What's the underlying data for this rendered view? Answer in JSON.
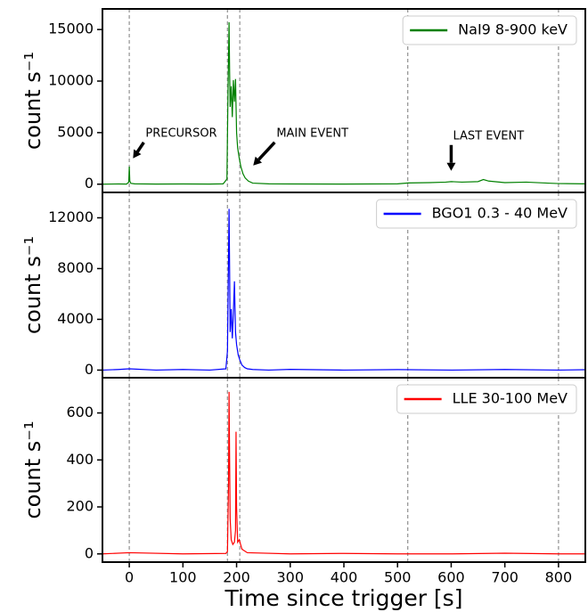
{
  "chart_data": [
    {
      "type": "line",
      "ylabel": "count s⁻¹",
      "xlim": [
        -50,
        850
      ],
      "ylim": [
        -800,
        17000
      ],
      "yticks": [
        0,
        5000,
        10000,
        15000
      ],
      "vlines": [
        0,
        183,
        206,
        519,
        800
      ],
      "x": [
        -50,
        -20,
        -5,
        -1,
        0,
        1,
        3,
        10,
        50,
        100,
        150,
        175,
        182,
        184,
        186,
        187,
        188,
        190,
        192,
        194,
        196,
        198,
        200,
        202,
        205,
        208,
        212,
        216,
        222,
        230,
        260,
        300,
        400,
        500,
        520,
        560,
        590,
        600,
        620,
        650,
        660,
        670,
        700,
        740,
        780,
        800,
        850
      ],
      "series": [
        {
          "name": "NaI9 8-900 keV",
          "color": "#008000",
          "values": [
            0,
            20,
            10,
            200,
            1700,
            300,
            80,
            30,
            10,
            20,
            10,
            30,
            500,
            9000,
            15700,
            11000,
            7500,
            9500,
            6500,
            10100,
            8000,
            10200,
            5000,
            3500,
            2500,
            1700,
            1000,
            600,
            300,
            100,
            30,
            20,
            10,
            30,
            120,
            150,
            200,
            250,
            200,
            250,
            450,
            300,
            150,
            200,
            100,
            60,
            30
          ]
        }
      ],
      "annotations": [
        {
          "text": "PRECURSOR",
          "xy": [
            7,
            2500
          ],
          "xytext": [
            27,
            4050
          ]
        },
        {
          "text": "MAIN EVENT",
          "xy": [
            231,
            1810
          ],
          "xytext": [
            271,
            4050
          ]
        },
        {
          "text": "LAST EVENT",
          "xy": [
            600,
            1300
          ],
          "xytext": [
            600,
            3800
          ]
        }
      ]
    },
    {
      "type": "line",
      "ylabel": "count s⁻¹",
      "xlim": [
        -50,
        850
      ],
      "ylim": [
        -600,
        14000
      ],
      "yticks": [
        0,
        4000,
        8000,
        12000
      ],
      "vlines": [
        0,
        183,
        206,
        519,
        800
      ],
      "x": [
        -50,
        -20,
        0,
        50,
        100,
        150,
        180,
        183,
        185,
        186,
        187,
        188,
        190,
        192,
        194,
        196,
        198,
        200,
        203,
        206,
        210,
        215,
        220,
        230,
        260,
        300,
        400,
        500,
        600,
        700,
        800,
        850
      ],
      "series": [
        {
          "name": "BGO1 0.3 - 40 MeV",
          "color": "#0000ff",
          "values": [
            0,
            50,
            100,
            0,
            50,
            0,
            100,
            1500,
            9000,
            12700,
            8000,
            3000,
            4800,
            2500,
            4500,
            7000,
            3000,
            2000,
            1200,
            800,
            400,
            200,
            100,
            50,
            0,
            60,
            0,
            40,
            0,
            50,
            0,
            30
          ]
        }
      ]
    },
    {
      "type": "line",
      "ylabel": "count s⁻¹",
      "xlabel": "Time since trigger [s]",
      "xlim": [
        -50,
        850
      ],
      "ylim": [
        -35,
        750
      ],
      "yticks": [
        0,
        200,
        400,
        600
      ],
      "xticks": [
        0,
        100,
        200,
        300,
        400,
        500,
        600,
        700,
        800
      ],
      "vlines": [
        0,
        183,
        206,
        519,
        800
      ],
      "x": [
        -50,
        0,
        100,
        180,
        183,
        185,
        186,
        187,
        188,
        190,
        193,
        196,
        198,
        199,
        200,
        202,
        205,
        210,
        220,
        300,
        400,
        500,
        600,
        700,
        800,
        850
      ],
      "series": [
        {
          "name": "LLE 30-100 MeV",
          "color": "#ff0000",
          "values": [
            0,
            5,
            0,
            2,
            10,
            300,
            690,
            400,
            150,
            60,
            40,
            50,
            100,
            520,
            200,
            50,
            60,
            20,
            5,
            0,
            2,
            0,
            0,
            3,
            0,
            0
          ]
        }
      ]
    }
  ]
}
